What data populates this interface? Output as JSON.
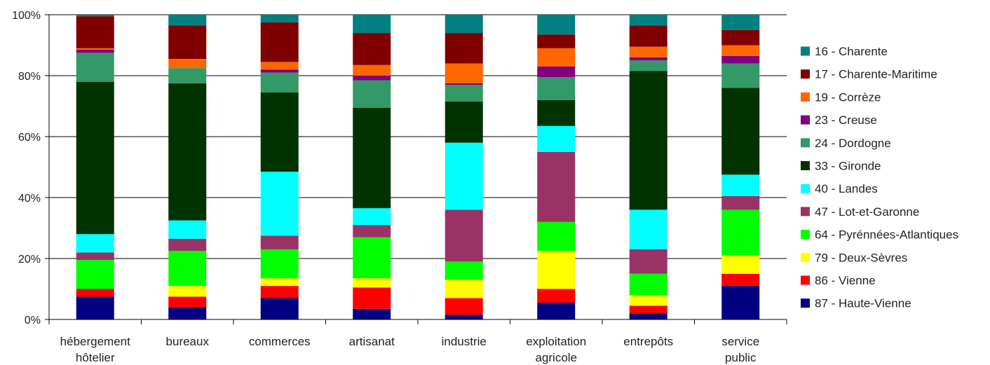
{
  "chart_data": {
    "type": "bar",
    "stacked": true,
    "normalized": true,
    "title": "",
    "xlabel": "",
    "ylabel": "",
    "ylim": [
      0,
      100
    ],
    "yticks": [
      "0%",
      "20%",
      "40%",
      "60%",
      "80%",
      "100%"
    ],
    "grid": true,
    "legend_position": "right",
    "categories": [
      [
        "hébergement",
        "hôtelier"
      ],
      [
        "bureaux"
      ],
      [
        "commerces"
      ],
      [
        "artisanat"
      ],
      [
        "industrie"
      ],
      [
        "exploitation",
        "agricole"
      ],
      [
        "entrepôts"
      ],
      [
        "service",
        "public"
      ]
    ],
    "series": [
      {
        "name": "87 - Haute-Vienne",
        "color": "#000080",
        "values": [
          7.5,
          4,
          7,
          3.5,
          1.5,
          5.5,
          2,
          11
        ]
      },
      {
        "name": "86 - Vienne",
        "color": "#ff0000",
        "values": [
          2.5,
          3.5,
          4,
          7,
          5.5,
          4.5,
          2.5,
          4
        ]
      },
      {
        "name": "79 - Deux-Sèvres",
        "color": "#ffff00",
        "values": [
          0,
          3.5,
          2.5,
          3,
          6,
          12.5,
          3.5,
          6
        ]
      },
      {
        "name": "64 - Pyrénnées-Atlantiques",
        "color": "#00ff00",
        "values": [
          9.5,
          11.5,
          9.5,
          13.5,
          6,
          9.5,
          7,
          15
        ]
      },
      {
        "name": "47 - Lot-et-Garonne",
        "color": "#993366",
        "values": [
          2.5,
          4,
          4.5,
          4,
          17,
          23,
          8,
          4.5
        ]
      },
      {
        "name": "40 - Landes",
        "color": "#00ffff",
        "values": [
          6,
          6,
          21,
          5.5,
          22,
          8.5,
          13,
          7
        ]
      },
      {
        "name": "33 - Gironde",
        "color": "#003300",
        "values": [
          50,
          45,
          26,
          33,
          13.5,
          8.5,
          45.5,
          28.5
        ]
      },
      {
        "name": "24 - Dordogne",
        "color": "#339966",
        "values": [
          9.5,
          5,
          6.5,
          9,
          5.5,
          7.5,
          3.5,
          8
        ]
      },
      {
        "name": "23 - Creuse",
        "color": "#800080",
        "values": [
          1,
          0,
          1,
          1.5,
          0.5,
          3.5,
          1,
          2.5
        ]
      },
      {
        "name": "19 - Corrèze",
        "color": "#ff6600",
        "values": [
          0.5,
          3,
          2.5,
          3.5,
          6.5,
          6,
          3.5,
          3.5
        ]
      },
      {
        "name": "17 - Charente-Maritime",
        "color": "#800000",
        "values": [
          10.5,
          11,
          13,
          10.5,
          10,
          4.5,
          7,
          5
        ]
      },
      {
        "name": "16 - Charente",
        "color": "#008080",
        "values": [
          0.5,
          3.5,
          2.5,
          6,
          6,
          6.5,
          3.5,
          5
        ]
      }
    ]
  }
}
